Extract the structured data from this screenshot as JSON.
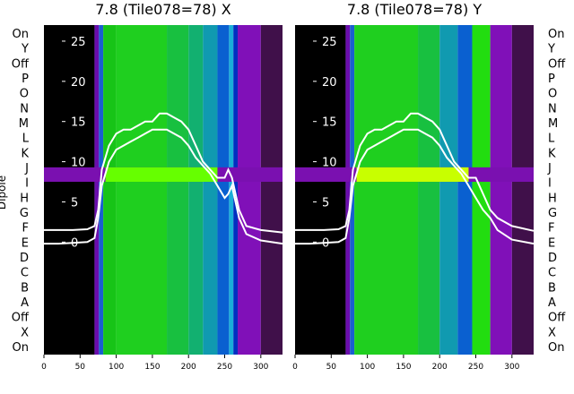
{
  "chart_data": [
    {
      "type": "heatmap",
      "title": "7.8 (Tile078=78) X",
      "xlim": [
        0,
        330
      ],
      "ylim": [
        -14,
        27
      ],
      "x_ticks": [
        "0",
        "50",
        "100",
        "150",
        "200",
        "250",
        "300"
      ],
      "y_ticks": [
        "0",
        "5",
        "10",
        "15",
        "20",
        "25"
      ],
      "y_label": "Dipole",
      "dipole_labels": [
        "On",
        "X",
        "Off",
        "A",
        "B",
        "C",
        "D",
        "E",
        "F",
        "G",
        "H",
        "I",
        "J",
        "K",
        "L",
        "M",
        "N",
        "O",
        "P",
        "Off",
        "Y",
        "On"
      ],
      "bands": [
        {
          "x0": 0,
          "x1": 70,
          "color": "#000000"
        },
        {
          "x0": 70,
          "x1": 76,
          "color": "#6a0dad"
        },
        {
          "x0": 76,
          "x1": 82,
          "color": "#1a5fd0"
        },
        {
          "x0": 82,
          "x1": 100,
          "color": "#17c417"
        },
        {
          "x0": 100,
          "x1": 170,
          "color": "#1fcf1f"
        },
        {
          "x0": 170,
          "x1": 200,
          "color": "#18c040"
        },
        {
          "x0": 200,
          "x1": 220,
          "color": "#12b070"
        },
        {
          "x0": 220,
          "x1": 240,
          "color": "#109ab0"
        },
        {
          "x0": 240,
          "x1": 256,
          "color": "#0a60d0"
        },
        {
          "x0": 256,
          "x1": 262,
          "color": "#1aaed8"
        },
        {
          "x0": 262,
          "x1": 268,
          "color": "#0030c0"
        },
        {
          "x0": 268,
          "x1": 300,
          "color": "#8010b8"
        },
        {
          "x0": 300,
          "x1": 330,
          "color": "#40104a"
        }
      ],
      "highlight_row": {
        "y0": 7.5,
        "y1": 9.3,
        "color": "#7a10b0",
        "mid_color": "#66ff00"
      },
      "series": [
        {
          "x": [
            0,
            20,
            40,
            60,
            70,
            75,
            80,
            90,
            100,
            110,
            120,
            130,
            140,
            150,
            160,
            170,
            180,
            190,
            200,
            210,
            220,
            230,
            240,
            250,
            255,
            260,
            270,
            280,
            300,
            330
          ],
          "values": [
            1.5,
            1.5,
            1.5,
            1.6,
            2,
            4,
            9,
            12,
            13.5,
            14,
            14,
            14.5,
            15,
            15,
            16,
            16,
            15.5,
            15,
            14,
            12,
            10,
            9,
            8,
            8,
            9,
            8,
            4,
            2,
            1.5,
            1.2
          ]
        },
        {
          "x": [
            0,
            20,
            40,
            60,
            70,
            75,
            80,
            90,
            100,
            110,
            120,
            130,
            140,
            150,
            160,
            170,
            180,
            190,
            200,
            210,
            220,
            230,
            240,
            250,
            255,
            260,
            270,
            280,
            300,
            330
          ],
          "values": [
            -0.2,
            -0.2,
            -0.1,
            0,
            0.5,
            3,
            7,
            10,
            11.5,
            12,
            12.5,
            13,
            13.5,
            14,
            14,
            14,
            13.5,
            13,
            12,
            10.5,
            9.5,
            8.5,
            7,
            5.5,
            6,
            7,
            3,
            1,
            0.2,
            -0.2
          ]
        }
      ]
    },
    {
      "type": "heatmap",
      "title": "7.8 (Tile078=78) Y",
      "xlim": [
        0,
        330
      ],
      "ylim": [
        -14,
        27
      ],
      "x_ticks": [
        "0",
        "50",
        "100",
        "150",
        "200",
        "250",
        "300"
      ],
      "y_ticks": [
        "0",
        "5",
        "10",
        "15",
        "20",
        "25"
      ],
      "dipole_labels": [
        "On",
        "X",
        "Off",
        "A",
        "B",
        "C",
        "D",
        "E",
        "F",
        "G",
        "H",
        "I",
        "J",
        "K",
        "L",
        "M",
        "N",
        "O",
        "P",
        "Off",
        "Y",
        "On"
      ],
      "bands": [
        {
          "x0": 0,
          "x1": 70,
          "color": "#000000"
        },
        {
          "x0": 70,
          "x1": 76,
          "color": "#6a0dad"
        },
        {
          "x0": 76,
          "x1": 82,
          "color": "#1a5fd0"
        },
        {
          "x0": 82,
          "x1": 170,
          "color": "#1fcf1f"
        },
        {
          "x0": 170,
          "x1": 200,
          "color": "#18c040"
        },
        {
          "x0": 200,
          "x1": 225,
          "color": "#109ab0"
        },
        {
          "x0": 225,
          "x1": 245,
          "color": "#0a60d0"
        },
        {
          "x0": 245,
          "x1": 270,
          "color": "#22dd10"
        },
        {
          "x0": 270,
          "x1": 300,
          "color": "#8010b8"
        },
        {
          "x0": 300,
          "x1": 330,
          "color": "#40104a"
        }
      ],
      "highlight_row": {
        "y0": 7.5,
        "y1": 9.3,
        "color": "#7a10b0",
        "mid_color": "#c8ff00"
      },
      "series": [
        {
          "x": [
            0,
            20,
            40,
            60,
            70,
            75,
            80,
            90,
            100,
            110,
            120,
            130,
            140,
            150,
            160,
            170,
            180,
            190,
            200,
            210,
            220,
            230,
            240,
            250,
            260,
            270,
            280,
            300,
            330
          ],
          "values": [
            1.5,
            1.5,
            1.5,
            1.6,
            2,
            4,
            9,
            12,
            13.5,
            14,
            14,
            14.5,
            15,
            15,
            16,
            16,
            15.5,
            15,
            14,
            12,
            10,
            9,
            8,
            8,
            6,
            4,
            3,
            2,
            1.4
          ]
        },
        {
          "x": [
            0,
            20,
            40,
            60,
            70,
            75,
            80,
            90,
            100,
            110,
            120,
            130,
            140,
            150,
            160,
            170,
            180,
            190,
            200,
            210,
            220,
            230,
            240,
            250,
            260,
            270,
            280,
            300,
            330
          ],
          "values": [
            -0.2,
            -0.2,
            -0.1,
            0,
            0.5,
            3,
            7,
            10,
            11.5,
            12,
            12.5,
            13,
            13.5,
            14,
            14,
            14,
            13.5,
            13,
            12,
            10.5,
            9.5,
            8.5,
            7,
            5.5,
            4,
            3,
            1.5,
            0.3,
            -0.2
          ]
        }
      ]
    }
  ]
}
